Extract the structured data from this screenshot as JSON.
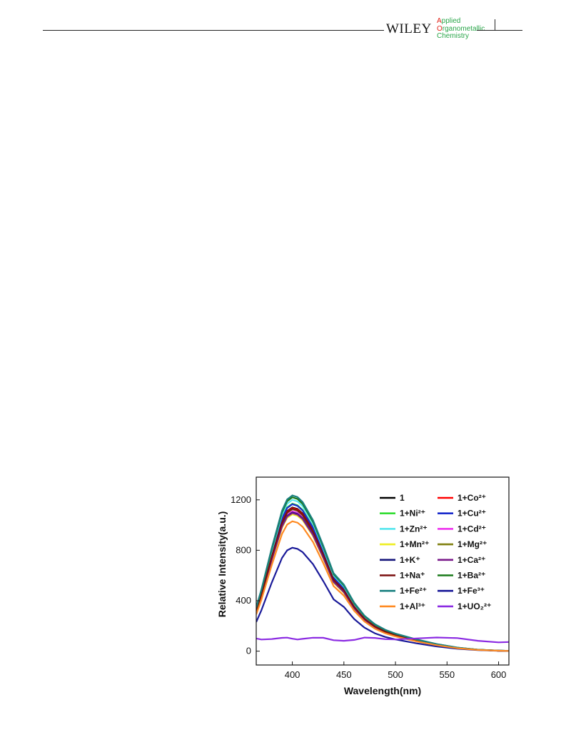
{
  "header": {
    "publisher": "WILEY",
    "journal_lines": [
      {
        "cap": "A",
        "rest": "pplied"
      },
      {
        "cap": "O",
        "rest": "rganometallic"
      },
      {
        "cap": "",
        "rest": "Chemistry"
      }
    ]
  },
  "chart_data": {
    "type": "line",
    "xlabel": "Wavelength(nm)",
    "ylabel": "Relative Intensity(a.u.)",
    "xlim": [
      365,
      610
    ],
    "ylim": [
      -110,
      1380
    ],
    "xticks": [
      400,
      450,
      500,
      550,
      600
    ],
    "yticks": [
      0,
      400,
      800,
      1200
    ],
    "legend_placement": "top-right",
    "legend_columns": 2,
    "x": [
      365,
      370,
      380,
      390,
      395,
      400,
      405,
      410,
      420,
      430,
      440,
      450,
      460,
      470,
      480,
      490,
      500,
      520,
      540,
      560,
      580,
      600,
      610
    ],
    "series": [
      {
        "name": "1",
        "color": "#000000",
        "peak": 1140
      },
      {
        "name": "1+Co²⁺",
        "color": "#ff0000",
        "peak": 1135
      },
      {
        "name": "1+Ni²⁺",
        "color": "#33dd33",
        "peak": 1170
      },
      {
        "name": "1+Cu²⁺",
        "color": "#1a2bcc",
        "peak": 1165
      },
      {
        "name": "1+Zn²⁺",
        "color": "#55e6ee",
        "peak": 1200
      },
      {
        "name": "1+Cd²⁺",
        "color": "#ee33ee",
        "peak": 1110
      },
      {
        "name": "1+Mn²⁺",
        "color": "#eeee22",
        "peak": 1085
      },
      {
        "name": "1+Mg²⁺",
        "color": "#808010",
        "peak": 1125
      },
      {
        "name": "1+K⁺",
        "color": "#14147a",
        "peak": 1100
      },
      {
        "name": "1+Ca²⁺",
        "color": "#7a1a8a",
        "peak": 1095
      },
      {
        "name": "1+Na⁺",
        "color": "#7a0f0f",
        "peak": 1130
      },
      {
        "name": "1+Ba²⁺",
        "color": "#1a7a1a",
        "peak": 1220
      },
      {
        "name": "1+Fe²⁺",
        "color": "#1a8080",
        "peak": 1235
      },
      {
        "name": "1+Fe³⁺",
        "color": "#1a1a99",
        "peak": 820
      },
      {
        "name": "1+Al³⁺",
        "color": "#ff8a22",
        "peak": 1030
      },
      {
        "name": "1+UO₂²⁺",
        "color": "#8b2be2",
        "peak": 100
      }
    ]
  }
}
